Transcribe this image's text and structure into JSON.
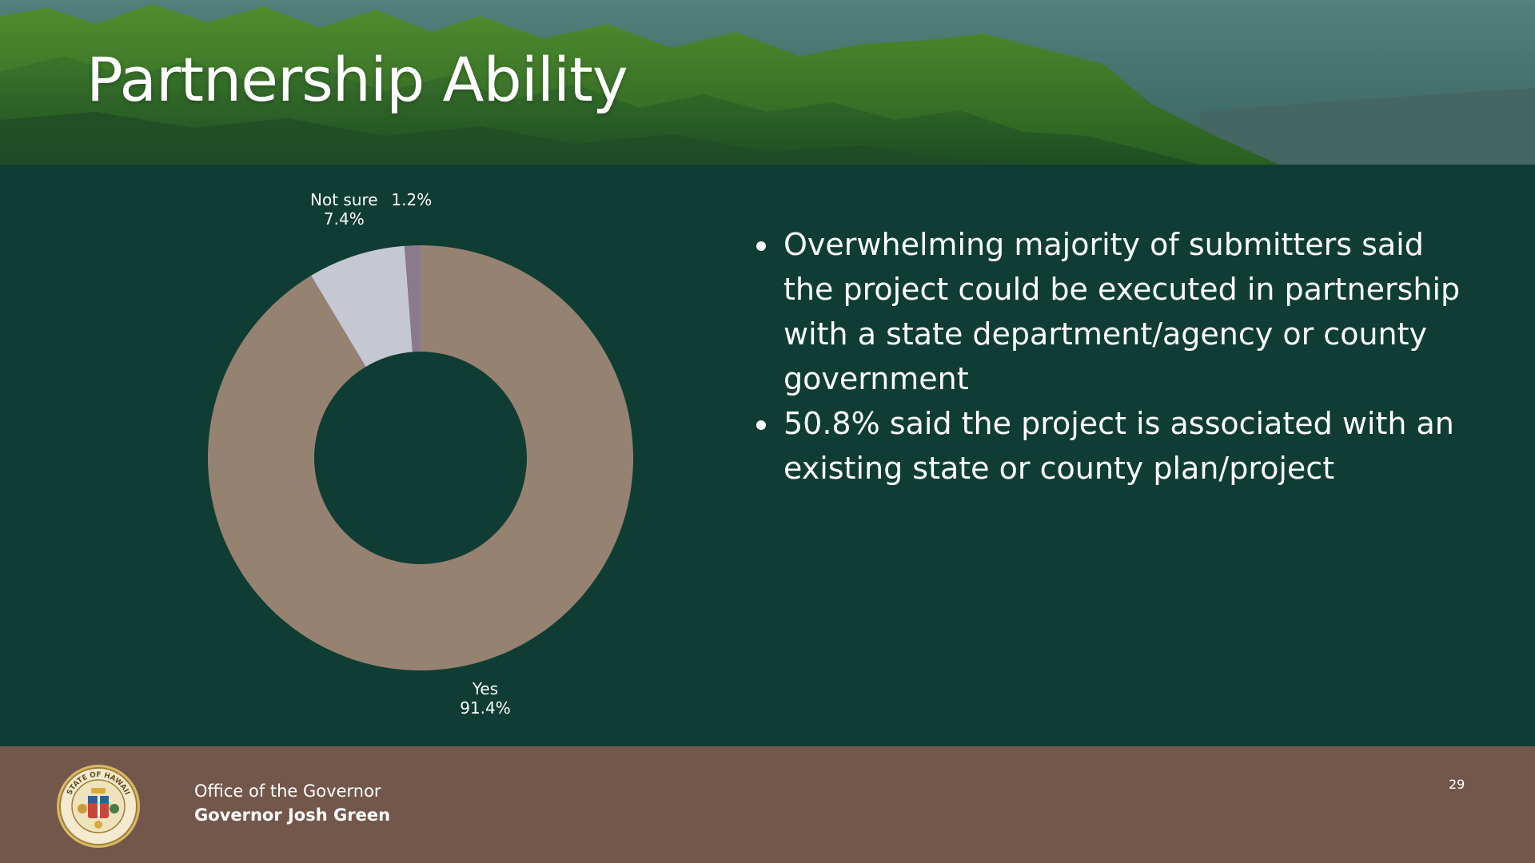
{
  "slide": {
    "title": "Partnership Ability",
    "page_number": "29"
  },
  "bullets": [
    "Overwhelming majority of submitters said the project could be executed in partnership with a state department/agency or county government",
    "50.8% said the project is associated with an existing state or county plan/project"
  ],
  "footer": {
    "office": "Office of the Governor",
    "governor": "Governor Josh Green",
    "seal_text": "STATE OF HAWAII"
  },
  "colors": {
    "background": "#0f3d33",
    "footer": "#73574b",
    "yes": "#968271",
    "not_sure": "#c5c8d3",
    "no": "#8a7a8c"
  },
  "chart_data": {
    "type": "pie",
    "variant": "donut",
    "slices": [
      {
        "label": "Yes",
        "value": 91.4,
        "display": "91.4%",
        "color": "#968271"
      },
      {
        "label": "Not sure",
        "value": 7.4,
        "display": "7.4%",
        "color": "#c5c8d3"
      },
      {
        "label": "No",
        "value": 1.2,
        "display": "1.2%",
        "color": "#8a7a8c"
      }
    ],
    "start_angle": "top",
    "direction": "clockwise",
    "legend": "none",
    "data_labels": "outside"
  }
}
